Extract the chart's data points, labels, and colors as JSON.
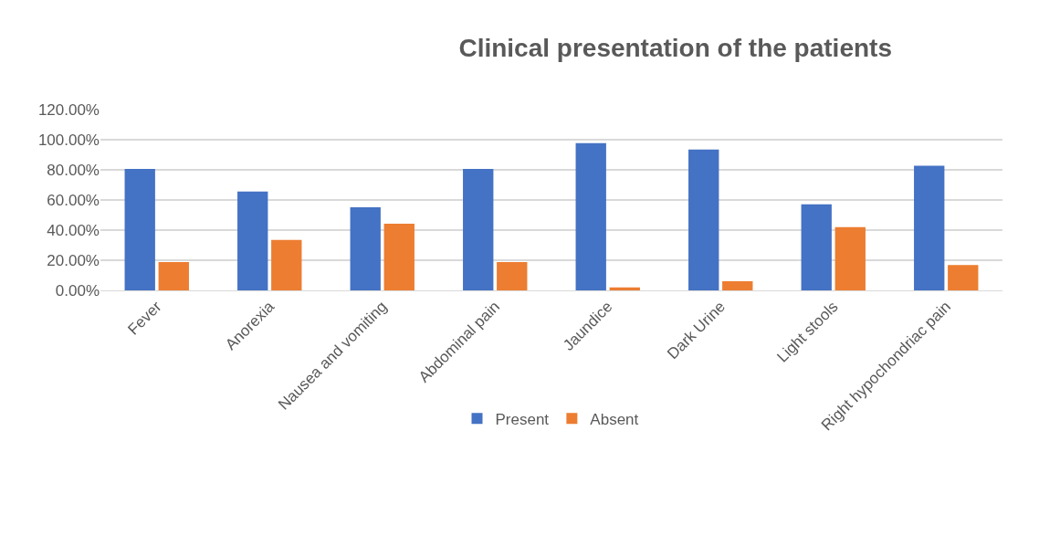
{
  "chart_data": {
    "type": "bar",
    "title": "Clinical presentation of the patients",
    "categories": [
      "Fever",
      "Anorexia",
      "Nausea and vomiting",
      "Abdominal pain",
      "Jaundice",
      "Dark Urine",
      "Light stools",
      "Right hypochondriac pain"
    ],
    "series": [
      {
        "name": "Present",
        "color": "#4472c4",
        "values": [
          80.6,
          65.6,
          55.2,
          80.6,
          97.8,
          93.5,
          57.1,
          82.7
        ]
      },
      {
        "name": "Absent",
        "color": "#ed7d31",
        "values": [
          18.8,
          33.5,
          44.3,
          18.8,
          1.9,
          6,
          42,
          16.8
        ]
      }
    ],
    "ylim": [
      0,
      120
    ],
    "yticks": [
      {
        "value": 0,
        "label": "0.00%"
      },
      {
        "value": 20,
        "label": "20.00%"
      },
      {
        "value": 40,
        "label": "40.00%"
      },
      {
        "value": 60,
        "label": "60.00%"
      },
      {
        "value": 80,
        "label": "80.00%"
      },
      {
        "value": 100,
        "label": "100.00%"
      },
      {
        "value": 120,
        "label": "120.00%"
      }
    ],
    "grid": "y",
    "legend": "bottom"
  }
}
